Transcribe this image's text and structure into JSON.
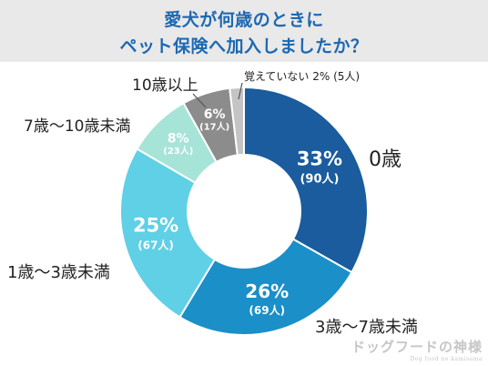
{
  "title": {
    "line1": "愛犬が何歳のときに",
    "line2": "ペット保険へ加入しましたか？"
  },
  "chart_data": {
    "type": "pie",
    "variant": "donut",
    "title": "愛犬が何歳のときにペット保険へ加入しましたか？",
    "series": [
      {
        "name": "",
        "categories": [
          "0歳",
          "3歳〜7歳未満",
          "1歳〜3歳未満",
          "7歳〜10歳未満",
          "10歳以上",
          "覚えていない"
        ],
        "values": [
          90,
          69,
          67,
          23,
          17,
          5
        ],
        "percent_labels": [
          "33%",
          "26%",
          "25%",
          "8%",
          "6%",
          "2%"
        ],
        "count_labels": [
          "(90人)",
          "(69人)",
          "(67人)",
          "(23人)",
          "(17人)",
          "(5人)"
        ],
        "colors": [
          "#1a5c9e",
          "#1a8fc8",
          "#5fd0e6",
          "#a6e4d7",
          "#8c8c8c",
          "#c4c4c4"
        ]
      }
    ],
    "outside_labels": {
      "small_slice": "覚えていない 2% (5人)"
    },
    "start_angle": "12 o'clock",
    "direction": "clockwise"
  },
  "watermark": {
    "main": "ドッグフードの神様",
    "sub": "Dog food no kamisama"
  }
}
